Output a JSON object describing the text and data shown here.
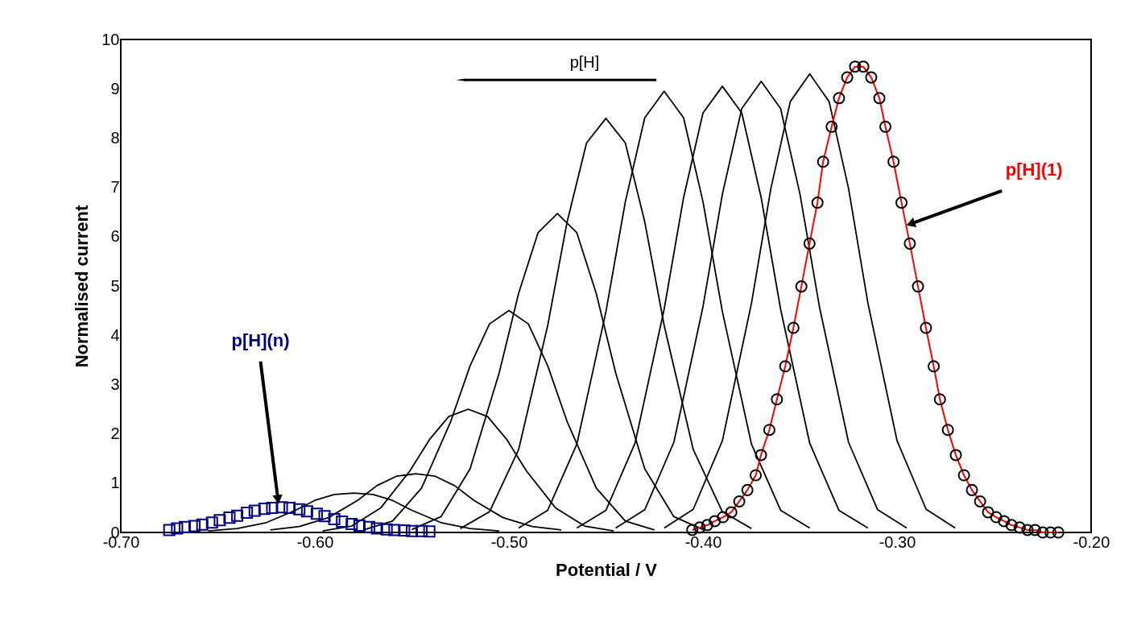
{
  "chart_data": {
    "type": "line",
    "xlabel": "Potential / V",
    "ylabel": "Normalised current",
    "xlim": [
      -0.7,
      -0.2
    ],
    "xticks": [
      {
        "value": -0.7,
        "label": "-0.70"
      },
      {
        "value": -0.6,
        "label": "-0.60"
      },
      {
        "value": -0.5,
        "label": "-0.50"
      },
      {
        "value": -0.4,
        "label": "-0.40"
      },
      {
        "value": -0.3,
        "label": "-0.30"
      },
      {
        "value": -0.2,
        "label": "-0.20"
      }
    ],
    "ylim": [
      0,
      10
    ],
    "yticks": [
      0,
      1,
      2,
      3,
      4,
      5,
      6,
      7,
      8,
      9,
      10
    ],
    "grid": false,
    "line_style": "solid",
    "annotations": [
      "p[H]",
      {
        "text": "p[H](n)",
        "x": -0.619,
        "y": 0.67
      },
      {
        "text": "p[H](1)",
        "x": -0.293,
        "y": 6.26
      }
    ],
    "series": [
      {
        "type": "line",
        "color": "#000000",
        "x": [
          -0.42,
          -0.405,
          -0.39,
          -0.375,
          -0.365,
          -0.355,
          -0.345,
          -0.335,
          -0.325,
          -0.315,
          -0.3,
          -0.285,
          -0.27
        ],
        "values": [
          0.09,
          0.47,
          1.86,
          4.65,
          6.98,
          8.74,
          9.3,
          8.74,
          6.98,
          4.65,
          1.86,
          0.47,
          0.09
        ]
      },
      {
        "type": "line",
        "color": "#000000",
        "x": [
          -0.445,
          -0.43,
          -0.415,
          -0.4,
          -0.39,
          -0.38,
          -0.37,
          -0.36,
          -0.35,
          -0.34,
          -0.325,
          -0.31,
          -0.295
        ],
        "values": [
          0.09,
          0.46,
          1.83,
          4.58,
          6.86,
          8.6,
          9.15,
          8.6,
          6.86,
          4.58,
          1.83,
          0.46,
          0.09
        ]
      },
      {
        "type": "line",
        "color": "#000000",
        "x": [
          -0.465,
          -0.45,
          -0.435,
          -0.42,
          -0.41,
          -0.4,
          -0.39,
          -0.38,
          -0.37,
          -0.36,
          -0.345,
          -0.33,
          -0.315
        ],
        "values": [
          0.09,
          0.45,
          1.81,
          4.53,
          6.79,
          8.51,
          9.05,
          8.51,
          6.79,
          4.53,
          1.81,
          0.45,
          0.09
        ]
      },
      {
        "type": "line",
        "color": "#000000",
        "x": [
          -0.495,
          -0.48,
          -0.465,
          -0.45,
          -0.44,
          -0.43,
          -0.42,
          -0.41,
          -0.4,
          -0.39,
          -0.375,
          -0.36,
          -0.345
        ],
        "values": [
          0.09,
          0.45,
          1.79,
          4.48,
          6.71,
          8.41,
          8.95,
          8.41,
          6.71,
          4.48,
          1.79,
          0.45,
          0.09
        ]
      },
      {
        "type": "line",
        "color": "#000000",
        "x": [
          -0.525,
          -0.51,
          -0.495,
          -0.48,
          -0.47,
          -0.46,
          -0.45,
          -0.44,
          -0.43,
          -0.42,
          -0.405,
          -0.39,
          -0.375
        ],
        "values": [
          0.08,
          0.42,
          1.68,
          4.2,
          6.3,
          7.9,
          8.4,
          7.9,
          6.3,
          4.2,
          1.68,
          0.42,
          0.08
        ]
      },
      {
        "type": "line",
        "color": "#000000",
        "x": [
          -0.55,
          -0.535,
          -0.52,
          -0.505,
          -0.495,
          -0.485,
          -0.475,
          -0.465,
          -0.455,
          -0.445,
          -0.43,
          -0.415,
          -0.4
        ],
        "values": [
          0.06,
          0.32,
          1.29,
          3.24,
          4.85,
          6.08,
          6.47,
          6.08,
          4.85,
          3.24,
          1.29,
          0.32,
          0.06
        ]
      },
      {
        "type": "line",
        "color": "#000000",
        "x": [
          -0.575,
          -0.56,
          -0.545,
          -0.53,
          -0.52,
          -0.51,
          -0.5,
          -0.49,
          -0.48,
          -0.47,
          -0.455,
          -0.44,
          -0.425
        ],
        "values": [
          0.05,
          0.23,
          0.9,
          2.25,
          3.38,
          4.23,
          4.5,
          4.23,
          3.38,
          2.25,
          0.9,
          0.23,
          0.05
        ]
      },
      {
        "type": "line",
        "color": "#000000",
        "x": [
          -0.596,
          -0.581,
          -0.566,
          -0.551,
          -0.541,
          -0.531,
          -0.521,
          -0.511,
          -0.501,
          -0.491,
          -0.476,
          -0.461,
          -0.446
        ],
        "values": [
          0.03,
          0.13,
          0.5,
          1.25,
          1.88,
          2.35,
          2.5,
          2.35,
          1.88,
          1.25,
          0.5,
          0.13,
          0.03
        ]
      },
      {
        "type": "line",
        "color": "#000000",
        "x": [
          -0.623,
          -0.608,
          -0.593,
          -0.578,
          -0.568,
          -0.558,
          -0.548,
          -0.538,
          -0.528,
          -0.518,
          -0.503,
          -0.488,
          -0.473
        ],
        "values": [
          0.05,
          0.12,
          0.3,
          0.65,
          0.95,
          1.14,
          1.19,
          1.14,
          0.95,
          0.65,
          0.3,
          0.12,
          0.05
        ]
      },
      {
        "type": "line",
        "color": "#000000",
        "x": [
          -0.655,
          -0.64,
          -0.625,
          -0.61,
          -0.6,
          -0.59,
          -0.58,
          -0.57,
          -0.56,
          -0.55,
          -0.535,
          -0.52,
          -0.505
        ],
        "values": [
          0.03,
          0.08,
          0.2,
          0.45,
          0.65,
          0.77,
          0.8,
          0.77,
          0.65,
          0.45,
          0.2,
          0.08,
          0.03
        ]
      },
      {
        "type": "line",
        "color": "#ff0000",
        "x": [
          -0.4055,
          -0.4017,
          -0.3978,
          -0.3939,
          -0.3897,
          -0.3854,
          -0.3813,
          -0.3771,
          -0.3728,
          -0.3701,
          -0.3658,
          -0.3619,
          -0.3576,
          -0.3534,
          -0.3493,
          -0.3451,
          -0.341,
          -0.3381,
          -0.3337,
          -0.3299,
          -0.3257,
          -0.3216,
          -0.3174,
          -0.3133,
          -0.3091,
          -0.306,
          -0.3018,
          -0.2977,
          -0.2934,
          -0.2892,
          -0.2851,
          -0.2811,
          -0.2779,
          -0.2738,
          -0.2697,
          -0.2655,
          -0.2614,
          -0.2572,
          -0.2531,
          -0.2489,
          -0.2449,
          -0.241,
          -0.2368,
          -0.2328,
          -0.2289,
          -0.2249,
          -0.2209,
          -0.2169
        ],
        "values": [
          0.05,
          0.1,
          0.15,
          0.23,
          0.31,
          0.41,
          0.63,
          0.86,
          1.16,
          1.57,
          2.08,
          2.7,
          3.37,
          4.15,
          4.99,
          5.86,
          6.69,
          7.52,
          8.23,
          8.81,
          9.23,
          9.45,
          9.45,
          9.23,
          8.81,
          8.23,
          7.52,
          6.69,
          5.86,
          4.99,
          4.15,
          3.37,
          2.7,
          2.08,
          1.57,
          1.16,
          0.86,
          0.63,
          0.41,
          0.31,
          0.23,
          0.15,
          0.1,
          0.05,
          0.05,
          0,
          0,
          0
        ]
      },
      {
        "type": "scatter",
        "marker": "circle",
        "color": "#000000",
        "x": [
          -0.4055,
          -0.4017,
          -0.3978,
          -0.3939,
          -0.3897,
          -0.3854,
          -0.3813,
          -0.3771,
          -0.3728,
          -0.3701,
          -0.3658,
          -0.3619,
          -0.3576,
          -0.3534,
          -0.3493,
          -0.3451,
          -0.341,
          -0.3381,
          -0.3337,
          -0.3299,
          -0.3257,
          -0.3216,
          -0.3174,
          -0.3133,
          -0.3091,
          -0.306,
          -0.3018,
          -0.2977,
          -0.2934,
          -0.2892,
          -0.2851,
          -0.2811,
          -0.2779,
          -0.2738,
          -0.2697,
          -0.2655,
          -0.2614,
          -0.2572,
          -0.2531,
          -0.2489,
          -0.2449,
          -0.241,
          -0.2368,
          -0.2328,
          -0.2289,
          -0.2249,
          -0.2209,
          -0.2169
        ],
        "values": [
          0.05,
          0.1,
          0.15,
          0.23,
          0.31,
          0.41,
          0.63,
          0.86,
          1.16,
          1.57,
          2.08,
          2.7,
          3.37,
          4.15,
          4.99,
          5.86,
          6.69,
          7.52,
          8.23,
          8.81,
          9.23,
          9.45,
          9.45,
          9.23,
          8.81,
          8.23,
          7.52,
          6.69,
          5.86,
          4.99,
          4.15,
          3.37,
          2.7,
          2.08,
          1.57,
          1.16,
          0.86,
          0.63,
          0.41,
          0.31,
          0.23,
          0.15,
          0.1,
          0.05,
          0.05,
          0,
          0,
          0
        ]
      },
      {
        "type": "scatter",
        "marker": "square",
        "color": "#000080",
        "x": [
          -0.675,
          -0.671,
          -0.667,
          -0.662,
          -0.658,
          -0.653,
          -0.649,
          -0.644,
          -0.64,
          -0.635,
          -0.631,
          -0.626,
          -0.622,
          -0.617,
          -0.613,
          -0.608,
          -0.604,
          -0.599,
          -0.595,
          -0.59,
          -0.586,
          -0.581,
          -0.577,
          -0.572,
          -0.568,
          -0.563,
          -0.559,
          -0.554,
          -0.55,
          -0.545,
          -0.541
        ],
        "values": [
          0.05,
          0.08,
          0.11,
          0.13,
          0.16,
          0.2,
          0.25,
          0.3,
          0.34,
          0.4,
          0.44,
          0.48,
          0.5,
          0.51,
          0.5,
          0.47,
          0.43,
          0.38,
          0.33,
          0.27,
          0.22,
          0.17,
          0.14,
          0.11,
          0.08,
          0.06,
          0.05,
          0.04,
          0.03,
          0.03,
          0.02
        ]
      }
    ]
  }
}
